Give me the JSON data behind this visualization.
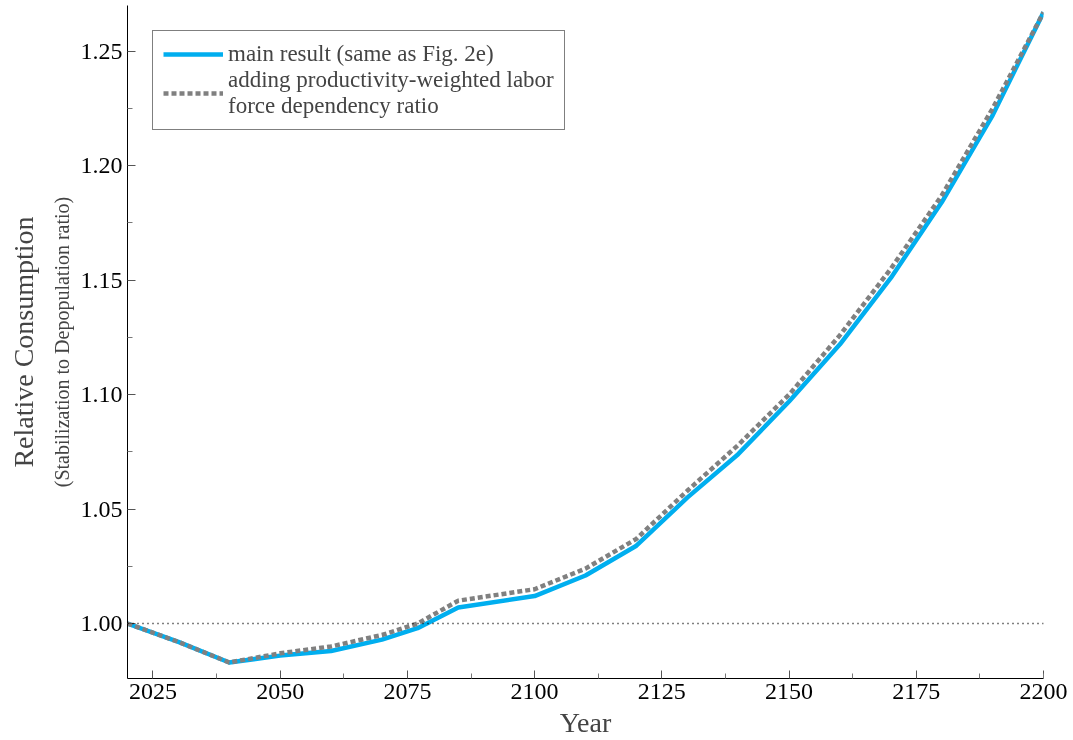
{
  "chart_data": {
    "type": "line",
    "xlabel": "Year",
    "ylabel": "Relative Consumption",
    "subtitle": "(Stabilization to Depopulation ratio)",
    "xlim": [
      2020,
      2200
    ],
    "ylim": [
      0.976,
      1.27
    ],
    "xticks": [
      2025,
      2050,
      2075,
      2100,
      2125,
      2150,
      2175,
      2200
    ],
    "yticks": [
      {
        "value": 1.0,
        "label": "1.00"
      },
      {
        "value": 1.05,
        "label": "1.05"
      },
      {
        "value": 1.1,
        "label": "1.10"
      },
      {
        "value": 1.15,
        "label": "1.15"
      },
      {
        "value": 1.2,
        "label": "1.20"
      },
      {
        "value": 1.25,
        "label": "1.25"
      }
    ],
    "x": [
      2020,
      2030,
      2040,
      2050,
      2060,
      2070,
      2077,
      2085,
      2100,
      2110,
      2120,
      2130,
      2140,
      2150,
      2160,
      2170,
      2180,
      2190,
      2200
    ],
    "series": [
      {
        "name": "main result (same as Fig. 2e)",
        "color": "#00aeef",
        "line_style": "solid",
        "values": [
          1.0,
          0.992,
          0.983,
          0.986,
          0.988,
          0.993,
          0.998,
          1.007,
          1.012,
          1.021,
          1.034,
          1.055,
          1.074,
          1.097,
          1.122,
          1.151,
          1.184,
          1.222,
          1.267
        ]
      },
      {
        "name": "adding productivity-weighted labor force dependency ratio",
        "color": "#808080",
        "line_style": "dashed",
        "values": [
          1.0,
          0.992,
          0.983,
          0.987,
          0.99,
          0.995,
          1.0,
          1.01,
          1.015,
          1.024,
          1.037,
          1.058,
          1.078,
          1.1,
          1.126,
          1.155,
          1.187,
          1.225,
          1.267
        ]
      }
    ],
    "ref_lines": [
      {
        "axis": "y",
        "value": 1.0,
        "color": "#000000",
        "line_style": "dotted"
      }
    ],
    "legend": "top left",
    "grid": false,
    "marker": "none"
  }
}
